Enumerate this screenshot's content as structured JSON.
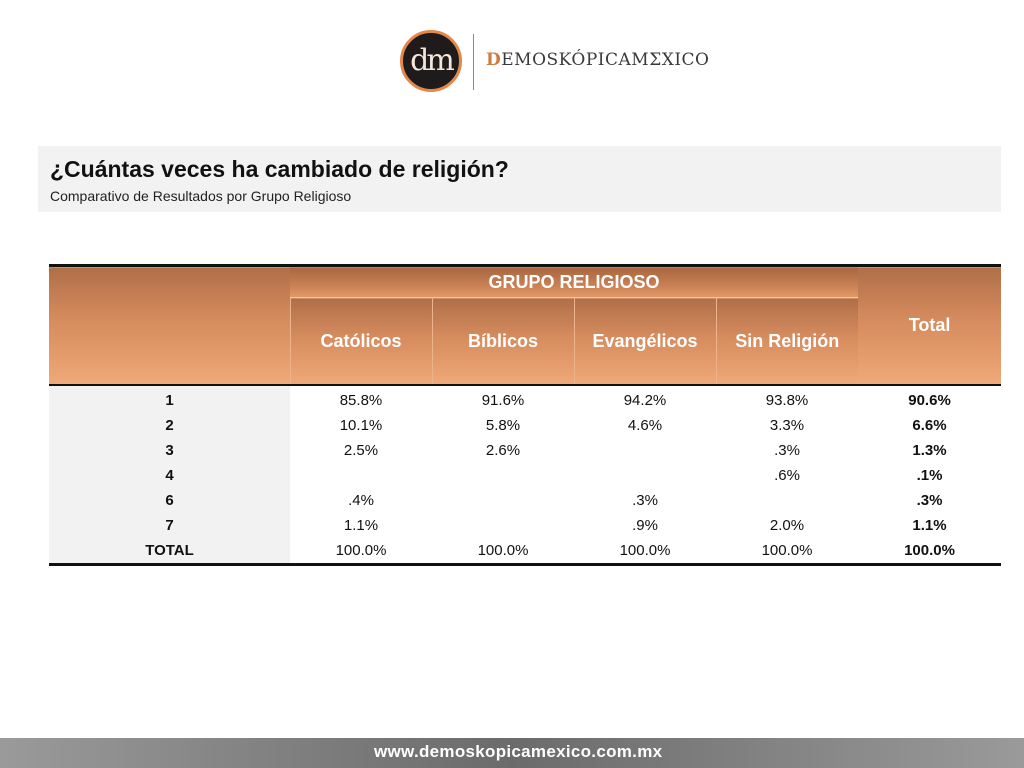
{
  "logo": {
    "monogram": "dm",
    "brand_first": "D",
    "brand_mid": "EMOSKÓPICA",
    "brand_second": "M",
    "brand_end": "ΣXICO"
  },
  "header": {
    "title": "¿Cuántas veces ha cambiado de religión?",
    "subtitle": "Comparativo de Resultados por Grupo Religioso"
  },
  "table": {
    "group_header": "GRUPO RELIGIOSO",
    "columns": [
      "Católicos",
      "Bíblicos",
      "Evangélicos",
      "Sin Religión"
    ],
    "total_header": "Total",
    "rows": [
      {
        "label": "1",
        "values": [
          "85.8%",
          "91.6%",
          "94.2%",
          "93.8%"
        ],
        "total": "90.6%"
      },
      {
        "label": "2",
        "values": [
          "10.1%",
          "5.8%",
          "4.6%",
          "3.3%"
        ],
        "total": "6.6%"
      },
      {
        "label": "3",
        "values": [
          "2.5%",
          "2.6%",
          "",
          ".3%"
        ],
        "total": "1.3%"
      },
      {
        "label": "4",
        "values": [
          "",
          "",
          "",
          ".6%"
        ],
        "total": ".1%"
      },
      {
        "label": "6",
        "values": [
          ".4%",
          "",
          ".3%",
          ""
        ],
        "total": ".3%"
      },
      {
        "label": "7",
        "values": [
          "1.1%",
          "",
          ".9%",
          "2.0%"
        ],
        "total": "1.1%"
      },
      {
        "label": "TOTAL",
        "values": [
          "100.0%",
          "100.0%",
          "100.0%",
          "100.0%"
        ],
        "total": "100.0%"
      }
    ]
  },
  "footer": {
    "url": "www.demoskopicamexico.com.mx"
  },
  "colors": {
    "accent": "#e4884a",
    "header_gradient_top": "#b06f48",
    "header_gradient_bottom": "#f0a978",
    "title_band": "#f2f2f2",
    "footer": "#7a7a7a"
  }
}
